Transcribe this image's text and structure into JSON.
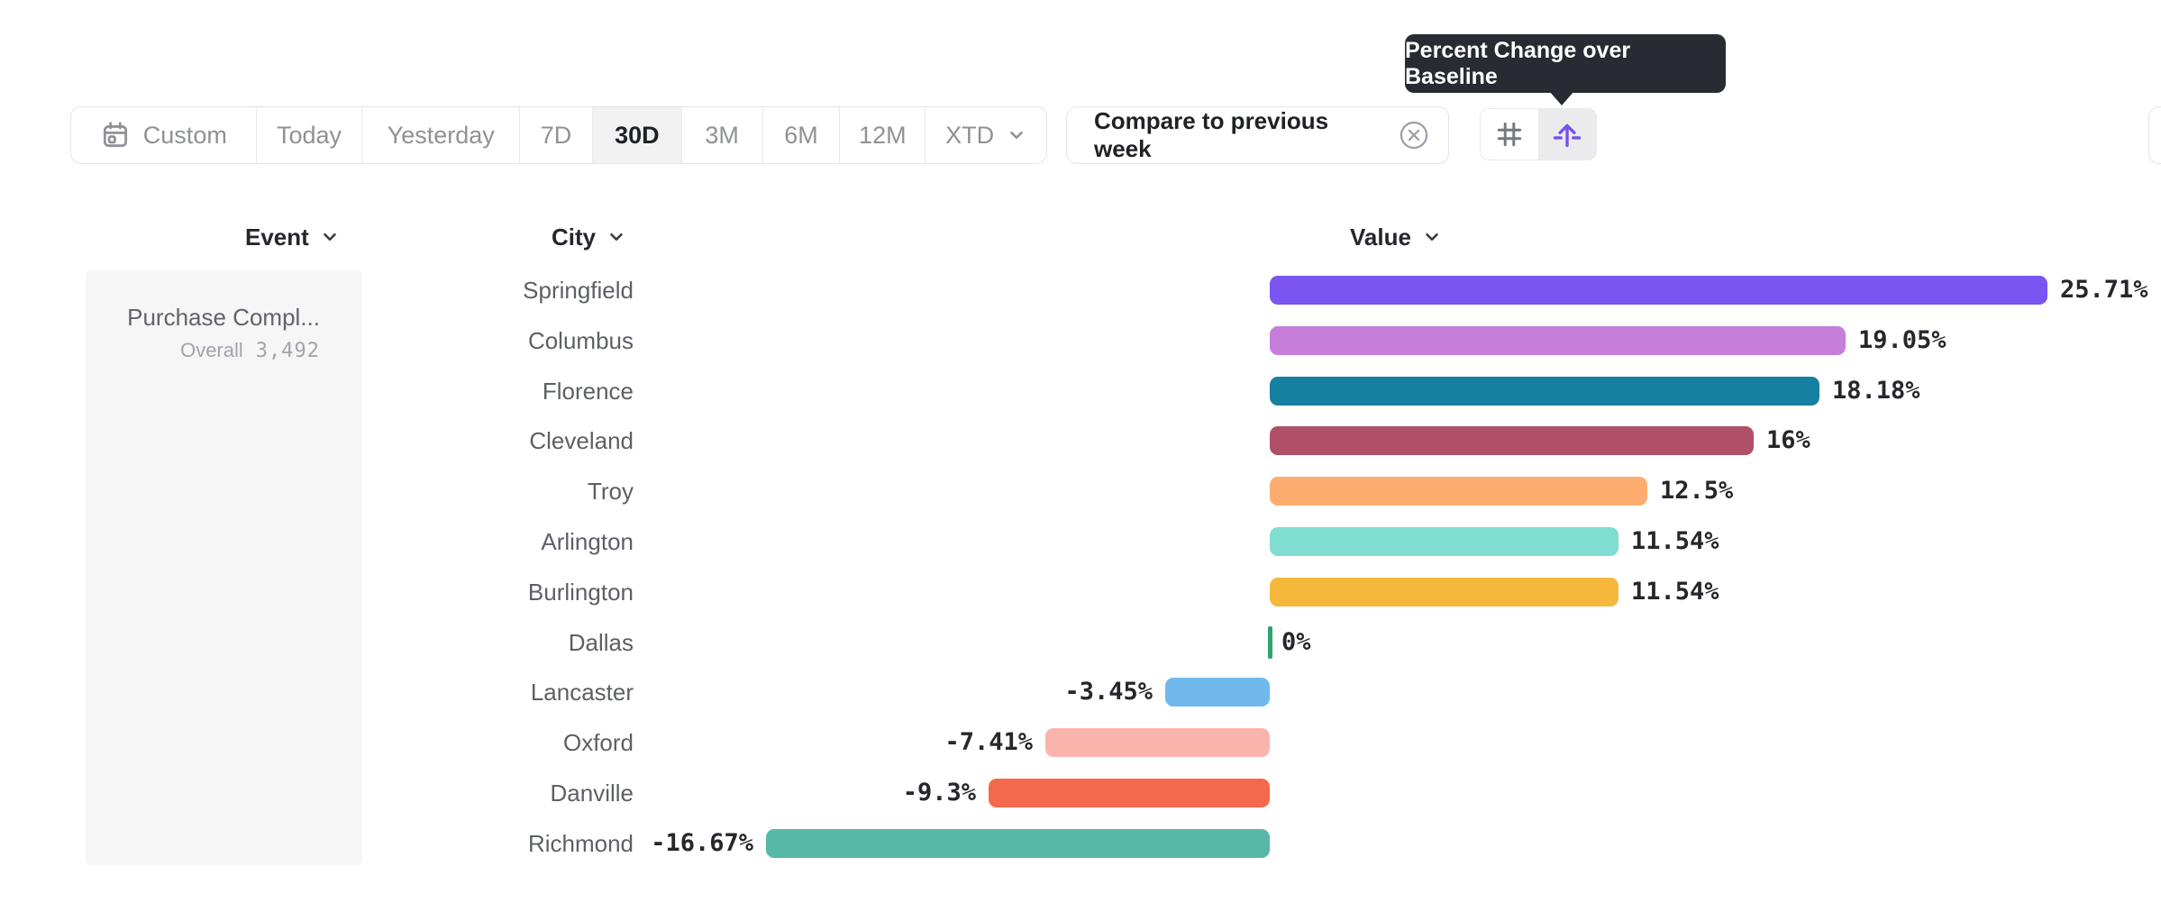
{
  "tooltip": {
    "text": "Percent Change over Baseline"
  },
  "toolbar": {
    "items": [
      {
        "label": "Custom",
        "icon": "calendar",
        "selected": false
      },
      {
        "label": "Today",
        "selected": false
      },
      {
        "label": "Yesterday",
        "selected": false
      },
      {
        "label": "7D",
        "selected": false
      },
      {
        "label": "30D",
        "selected": true
      },
      {
        "label": "3M",
        "selected": false
      },
      {
        "label": "6M",
        "selected": false
      },
      {
        "label": "12M",
        "selected": false
      },
      {
        "label": "XTD",
        "icon": "chevron-down",
        "selected": false
      }
    ]
  },
  "comparison": {
    "label": "Compare to previous week"
  },
  "view_toggle": {
    "options": [
      "grid-view",
      "percent-change-baseline-view"
    ],
    "selected": "percent-change-baseline-view",
    "accent": "#7352ef"
  },
  "columns": {
    "event": "Event",
    "city": "City",
    "value": "Value"
  },
  "event_panel": {
    "event_name": "Purchase Compl...",
    "overall_label": "Overall",
    "overall_value": "3,492"
  },
  "chart_data": {
    "type": "bar",
    "orientation": "horizontal",
    "title": "Percent Change over Baseline",
    "categories": [
      "Springfield",
      "Columbus",
      "Florence",
      "Cleveland",
      "Troy",
      "Arlington",
      "Burlington",
      "Dallas",
      "Lancaster",
      "Oxford",
      "Danville",
      "Richmond"
    ],
    "values": [
      25.71,
      19.05,
      18.18,
      16,
      12.5,
      11.54,
      11.54,
      0,
      -3.45,
      -7.41,
      -9.3,
      -16.67
    ],
    "labels": [
      "25.71%",
      "19.05%",
      "18.18%",
      "16%",
      "12.5%",
      "11.54%",
      "11.54%",
      "0%",
      "-3.45%",
      "-7.41%",
      "-9.3%",
      "-16.67%"
    ],
    "colors": [
      "#7A55F2",
      "#C77EDB",
      "#15809F",
      "#B04F68",
      "#FCAC6E",
      "#7FDDD2",
      "#F5B73C",
      "#2EA56C",
      "#6FB9ED",
      "#FAB4AB",
      "#F4694B",
      "#57B8A8"
    ],
    "baseline": 0,
    "zero_tick_color": "#2EA56C",
    "value_label_color": "#26272c",
    "xlim": [
      -16.67,
      25.71
    ],
    "grid": false,
    "legend": false
  }
}
